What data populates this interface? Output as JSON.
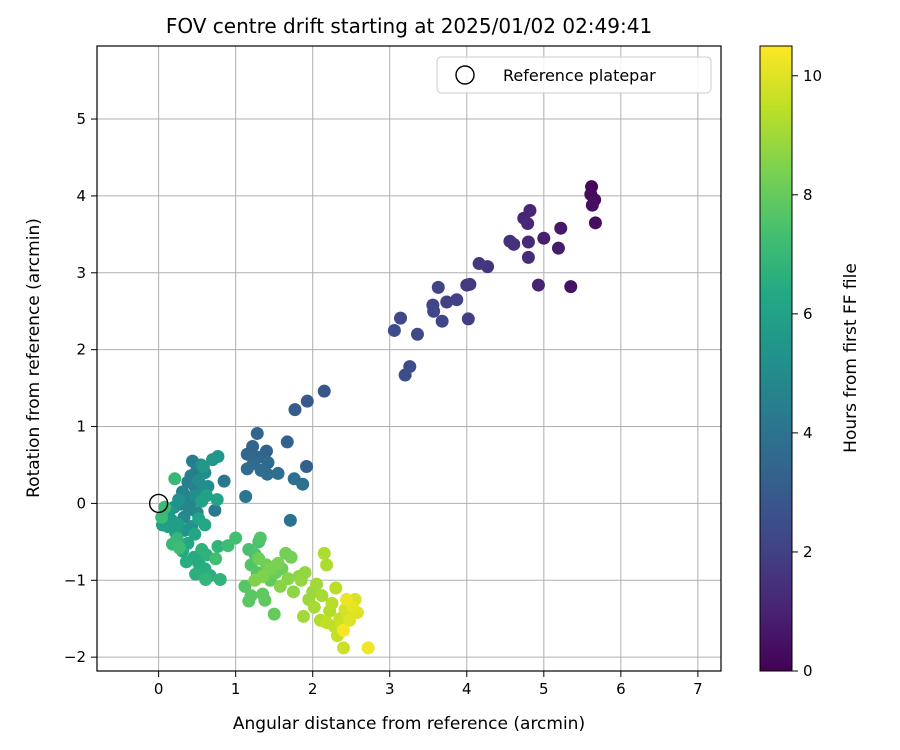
{
  "chart_data": {
    "type": "scatter",
    "title": "FOV centre drift starting at 2025/01/02 02:49:41",
    "xlabel": "Angular distance from reference (arcmin)",
    "ylabel": "Rotation from reference (arcmin)",
    "xlim": [
      -0.8,
      7.3
    ],
    "ylim": [
      -2.18,
      5.95
    ],
    "xticks": [
      0,
      1,
      2,
      3,
      4,
      5,
      6,
      7
    ],
    "yticks": [
      -2,
      -1,
      0,
      1,
      2,
      3,
      4,
      5
    ],
    "grid": true,
    "legend": {
      "position": "top-right",
      "entries": [
        "Reference platepar"
      ]
    },
    "reference_point": {
      "x": 0,
      "y": 0,
      "marker": "open-circle"
    },
    "colorbar": {
      "label": "Hours from first FF file",
      "range": [
        0,
        10.5
      ],
      "ticks": [
        0,
        2,
        4,
        6,
        8,
        10
      ],
      "colormap": "viridis"
    },
    "series": [
      {
        "color_by": "hours",
        "points": [
          {
            "x": 5.62,
            "y": 4.12,
            "h": 0.2
          },
          {
            "x": 5.61,
            "y": 4.02,
            "h": 0.3
          },
          {
            "x": 5.66,
            "y": 3.95,
            "h": 0.3
          },
          {
            "x": 5.63,
            "y": 3.88,
            "h": 0.4
          },
          {
            "x": 5.67,
            "y": 3.65,
            "h": 0.4
          },
          {
            "x": 5.35,
            "y": 2.82,
            "h": 0.5
          },
          {
            "x": 5.22,
            "y": 3.58,
            "h": 0.7
          },
          {
            "x": 5.19,
            "y": 3.32,
            "h": 0.8
          },
          {
            "x": 5.0,
            "y": 3.45,
            "h": 0.9
          },
          {
            "x": 4.93,
            "y": 2.84,
            "h": 1.0
          },
          {
            "x": 4.82,
            "y": 3.81,
            "h": 1.1
          },
          {
            "x": 4.74,
            "y": 3.71,
            "h": 1.1
          },
          {
            "x": 4.79,
            "y": 3.64,
            "h": 1.2
          },
          {
            "x": 4.8,
            "y": 3.4,
            "h": 1.2
          },
          {
            "x": 4.8,
            "y": 3.2,
            "h": 1.3
          },
          {
            "x": 4.61,
            "y": 3.37,
            "h": 1.4
          },
          {
            "x": 4.56,
            "y": 3.41,
            "h": 1.5
          },
          {
            "x": 4.27,
            "y": 3.08,
            "h": 1.6
          },
          {
            "x": 4.16,
            "y": 3.12,
            "h": 1.7
          },
          {
            "x": 4.04,
            "y": 2.85,
            "h": 1.8
          },
          {
            "x": 4.0,
            "y": 2.84,
            "h": 1.8
          },
          {
            "x": 4.02,
            "y": 2.4,
            "h": 1.9
          },
          {
            "x": 3.87,
            "y": 2.65,
            "h": 2.0
          },
          {
            "x": 3.74,
            "y": 2.62,
            "h": 2.0
          },
          {
            "x": 3.63,
            "y": 2.81,
            "h": 2.1
          },
          {
            "x": 3.56,
            "y": 2.58,
            "h": 2.1
          },
          {
            "x": 3.57,
            "y": 2.5,
            "h": 2.2
          },
          {
            "x": 3.68,
            "y": 2.37,
            "h": 2.2
          },
          {
            "x": 3.36,
            "y": 2.2,
            "h": 2.3
          },
          {
            "x": 3.14,
            "y": 2.41,
            "h": 2.3
          },
          {
            "x": 3.06,
            "y": 2.25,
            "h": 2.4
          },
          {
            "x": 3.26,
            "y": 1.78,
            "h": 2.4
          },
          {
            "x": 3.2,
            "y": 1.67,
            "h": 2.5
          },
          {
            "x": 2.15,
            "y": 1.46,
            "h": 2.8
          },
          {
            "x": 1.93,
            "y": 1.33,
            "h": 2.9
          },
          {
            "x": 1.77,
            "y": 1.22,
            "h": 3.0
          },
          {
            "x": 1.92,
            "y": 0.48,
            "h": 3.2
          },
          {
            "x": 1.67,
            "y": 0.8,
            "h": 3.3
          },
          {
            "x": 1.4,
            "y": 0.68,
            "h": 3.3
          },
          {
            "x": 1.28,
            "y": 0.91,
            "h": 3.4
          },
          {
            "x": 1.22,
            "y": 0.74,
            "h": 3.4
          },
          {
            "x": 1.15,
            "y": 0.64,
            "h": 3.5
          },
          {
            "x": 1.3,
            "y": 0.6,
            "h": 3.5
          },
          {
            "x": 1.42,
            "y": 0.53,
            "h": 3.6
          },
          {
            "x": 1.23,
            "y": 0.52,
            "h": 3.6
          },
          {
            "x": 1.15,
            "y": 0.45,
            "h": 3.7
          },
          {
            "x": 1.33,
            "y": 0.43,
            "h": 3.7
          },
          {
            "x": 1.41,
            "y": 0.38,
            "h": 3.8
          },
          {
            "x": 1.55,
            "y": 0.39,
            "h": 3.8
          },
          {
            "x": 1.76,
            "y": 0.32,
            "h": 3.9
          },
          {
            "x": 1.87,
            "y": 0.25,
            "h": 3.9
          },
          {
            "x": 1.71,
            "y": -0.22,
            "h": 4.0
          },
          {
            "x": 1.13,
            "y": 0.09,
            "h": 4.1
          },
          {
            "x": 0.85,
            "y": 0.29,
            "h": 4.2
          },
          {
            "x": 0.73,
            "y": -0.09,
            "h": 4.3
          },
          {
            "x": 0.44,
            "y": 0.55,
            "h": 4.4
          },
          {
            "x": 0.5,
            "y": 0.45,
            "h": 4.4
          },
          {
            "x": 0.42,
            "y": 0.36,
            "h": 4.5
          },
          {
            "x": 0.38,
            "y": 0.28,
            "h": 4.5
          },
          {
            "x": 0.47,
            "y": 0.22,
            "h": 4.6
          },
          {
            "x": 0.31,
            "y": 0.15,
            "h": 4.6
          },
          {
            "x": 0.36,
            "y": 0.09,
            "h": 4.7
          },
          {
            "x": 0.45,
            "y": 0.04,
            "h": 4.7
          },
          {
            "x": 0.29,
            "y": -0.01,
            "h": 4.8
          },
          {
            "x": 0.4,
            "y": -0.08,
            "h": 4.8
          },
          {
            "x": 0.5,
            "y": -0.12,
            "h": 4.9
          },
          {
            "x": 0.33,
            "y": -0.18,
            "h": 4.9
          },
          {
            "x": 0.55,
            "y": 0.5,
            "h": 5.0
          },
          {
            "x": 0.6,
            "y": 0.4,
            "h": 5.0
          },
          {
            "x": 0.52,
            "y": 0.3,
            "h": 5.1
          },
          {
            "x": 0.64,
            "y": 0.22,
            "h": 5.1
          },
          {
            "x": 0.57,
            "y": 0.15,
            "h": 5.2
          },
          {
            "x": 0.48,
            "y": 0.1,
            "h": 5.2
          },
          {
            "x": 0.26,
            "y": 0.05,
            "h": 5.3
          },
          {
            "x": 0.2,
            "y": -0.05,
            "h": 5.3
          },
          {
            "x": 0.43,
            "y": -0.3,
            "h": 5.4
          },
          {
            "x": 0.34,
            "y": -0.35,
            "h": 5.4
          },
          {
            "x": 0.77,
            "y": 0.61,
            "h": 5.5
          },
          {
            "x": 0.7,
            "y": 0.57,
            "h": 5.5
          },
          {
            "x": 0.58,
            "y": 0.48,
            "h": 5.6
          },
          {
            "x": 0.14,
            "y": -0.1,
            "h": 5.6
          },
          {
            "x": 0.08,
            "y": -0.15,
            "h": 5.7
          },
          {
            "x": 0.17,
            "y": -0.22,
            "h": 5.7
          },
          {
            "x": 0.25,
            "y": -0.27,
            "h": 5.8
          },
          {
            "x": 0.05,
            "y": -0.28,
            "h": 5.8
          },
          {
            "x": 0.12,
            "y": -0.3,
            "h": 5.9
          },
          {
            "x": 0.22,
            "y": -0.38,
            "h": 5.9
          },
          {
            "x": 0.62,
            "y": 0.1,
            "h": 6.0
          },
          {
            "x": 0.56,
            "y": 0.03,
            "h": 6.0
          },
          {
            "x": 0.76,
            "y": 0.05,
            "h": 6.1
          },
          {
            "x": 0.52,
            "y": -0.2,
            "h": 6.1
          },
          {
            "x": 0.6,
            "y": -0.28,
            "h": 6.2
          },
          {
            "x": 0.47,
            "y": -0.4,
            "h": 6.2
          },
          {
            "x": 0.38,
            "y": -0.52,
            "h": 6.3
          },
          {
            "x": 0.31,
            "y": -0.62,
            "h": 6.3
          },
          {
            "x": 0.46,
            "y": -0.7,
            "h": 6.4
          },
          {
            "x": 0.52,
            "y": -0.78,
            "h": 6.4
          },
          {
            "x": 0.36,
            "y": -0.76,
            "h": 6.5
          },
          {
            "x": 0.6,
            "y": -0.85,
            "h": 6.5
          },
          {
            "x": 0.67,
            "y": -0.94,
            "h": 6.6
          },
          {
            "x": 0.48,
            "y": -0.92,
            "h": 6.6
          },
          {
            "x": 0.56,
            "y": -0.6,
            "h": 6.7
          },
          {
            "x": 0.62,
            "y": -0.67,
            "h": 6.7
          },
          {
            "x": 0.77,
            "y": -0.56,
            "h": 6.8
          },
          {
            "x": 0.8,
            "y": -0.99,
            "h": 6.8
          },
          {
            "x": 0.61,
            "y": -0.99,
            "h": 6.9
          },
          {
            "x": 0.24,
            "y": -0.46,
            "h": 6.9
          },
          {
            "x": 0.18,
            "y": -0.53,
            "h": 7.0
          },
          {
            "x": 0.21,
            "y": 0.32,
            "h": 7.0
          },
          {
            "x": 0.08,
            "y": -0.05,
            "h": 7.1
          },
          {
            "x": 0.04,
            "y": -0.18,
            "h": 7.1
          },
          {
            "x": 0.27,
            "y": -0.58,
            "h": 7.2
          },
          {
            "x": 0.9,
            "y": -0.55,
            "h": 7.2
          },
          {
            "x": 1.0,
            "y": -0.45,
            "h": 7.3
          },
          {
            "x": 0.74,
            "y": -0.72,
            "h": 7.3
          },
          {
            "x": 1.17,
            "y": -0.6,
            "h": 7.4
          },
          {
            "x": 1.25,
            "y": -0.66,
            "h": 7.5
          },
          {
            "x": 1.3,
            "y": -0.5,
            "h": 7.5
          },
          {
            "x": 1.32,
            "y": -0.45,
            "h": 7.6
          },
          {
            "x": 1.2,
            "y": -0.8,
            "h": 7.6
          },
          {
            "x": 1.28,
            "y": -0.9,
            "h": 7.7
          },
          {
            "x": 1.12,
            "y": -1.08,
            "h": 7.7
          },
          {
            "x": 1.2,
            "y": -1.2,
            "h": 7.8
          },
          {
            "x": 1.17,
            "y": -1.27,
            "h": 7.8
          },
          {
            "x": 1.35,
            "y": -1.18,
            "h": 7.9
          },
          {
            "x": 1.38,
            "y": -1.26,
            "h": 7.9
          },
          {
            "x": 1.5,
            "y": -1.44,
            "h": 8.0
          },
          {
            "x": 1.45,
            "y": -1.0,
            "h": 8.0
          },
          {
            "x": 1.52,
            "y": -0.9,
            "h": 8.1
          },
          {
            "x": 1.6,
            "y": -0.85,
            "h": 8.1
          },
          {
            "x": 1.4,
            "y": -0.8,
            "h": 8.2
          },
          {
            "x": 1.3,
            "y": -0.72,
            "h": 8.2
          },
          {
            "x": 1.65,
            "y": -0.65,
            "h": 8.3
          },
          {
            "x": 1.72,
            "y": -0.7,
            "h": 8.3
          },
          {
            "x": 1.55,
            "y": -0.78,
            "h": 8.4
          },
          {
            "x": 1.45,
            "y": -0.85,
            "h": 8.4
          },
          {
            "x": 1.35,
            "y": -0.95,
            "h": 8.5
          },
          {
            "x": 1.25,
            "y": -1.0,
            "h": 8.5
          },
          {
            "x": 1.58,
            "y": -1.08,
            "h": 8.6
          },
          {
            "x": 1.68,
            "y": -0.98,
            "h": 8.6
          },
          {
            "x": 1.75,
            "y": -1.15,
            "h": 8.7
          },
          {
            "x": 1.82,
            "y": -0.95,
            "h": 8.7
          },
          {
            "x": 1.9,
            "y": -0.9,
            "h": 8.8
          },
          {
            "x": 1.85,
            "y": -1.0,
            "h": 8.8
          },
          {
            "x": 1.95,
            "y": -1.25,
            "h": 8.9
          },
          {
            "x": 2.0,
            "y": -1.15,
            "h": 8.9
          },
          {
            "x": 2.05,
            "y": -1.05,
            "h": 9.0
          },
          {
            "x": 1.88,
            "y": -1.47,
            "h": 9.0
          },
          {
            "x": 2.02,
            "y": -1.35,
            "h": 9.1
          },
          {
            "x": 2.12,
            "y": -1.2,
            "h": 9.1
          },
          {
            "x": 2.15,
            "y": -0.65,
            "h": 9.2
          },
          {
            "x": 2.18,
            "y": -0.8,
            "h": 9.2
          },
          {
            "x": 2.1,
            "y": -1.52,
            "h": 9.3
          },
          {
            "x": 2.22,
            "y": -1.4,
            "h": 9.3
          },
          {
            "x": 2.3,
            "y": -1.1,
            "h": 9.4
          },
          {
            "x": 2.25,
            "y": -1.3,
            "h": 9.4
          },
          {
            "x": 2.18,
            "y": -1.55,
            "h": 9.5
          },
          {
            "x": 2.28,
            "y": -1.6,
            "h": 9.5
          },
          {
            "x": 2.35,
            "y": -1.5,
            "h": 9.6
          },
          {
            "x": 2.32,
            "y": -1.72,
            "h": 9.6
          },
          {
            "x": 2.4,
            "y": -1.88,
            "h": 9.7
          },
          {
            "x": 2.38,
            "y": -1.58,
            "h": 9.7
          },
          {
            "x": 2.45,
            "y": -1.45,
            "h": 9.8
          },
          {
            "x": 2.42,
            "y": -1.38,
            "h": 9.8
          },
          {
            "x": 2.5,
            "y": -1.3,
            "h": 9.9
          },
          {
            "x": 2.55,
            "y": -1.25,
            "h": 9.9
          },
          {
            "x": 2.48,
            "y": -1.52,
            "h": 10.0
          },
          {
            "x": 2.58,
            "y": -1.42,
            "h": 10.0
          },
          {
            "x": 2.52,
            "y": -1.35,
            "h": 10.1
          },
          {
            "x": 2.44,
            "y": -1.25,
            "h": 10.2
          },
          {
            "x": 2.72,
            "y": -1.88,
            "h": 10.3
          },
          {
            "x": 2.4,
            "y": -1.65,
            "h": 10.4
          }
        ]
      }
    ]
  }
}
